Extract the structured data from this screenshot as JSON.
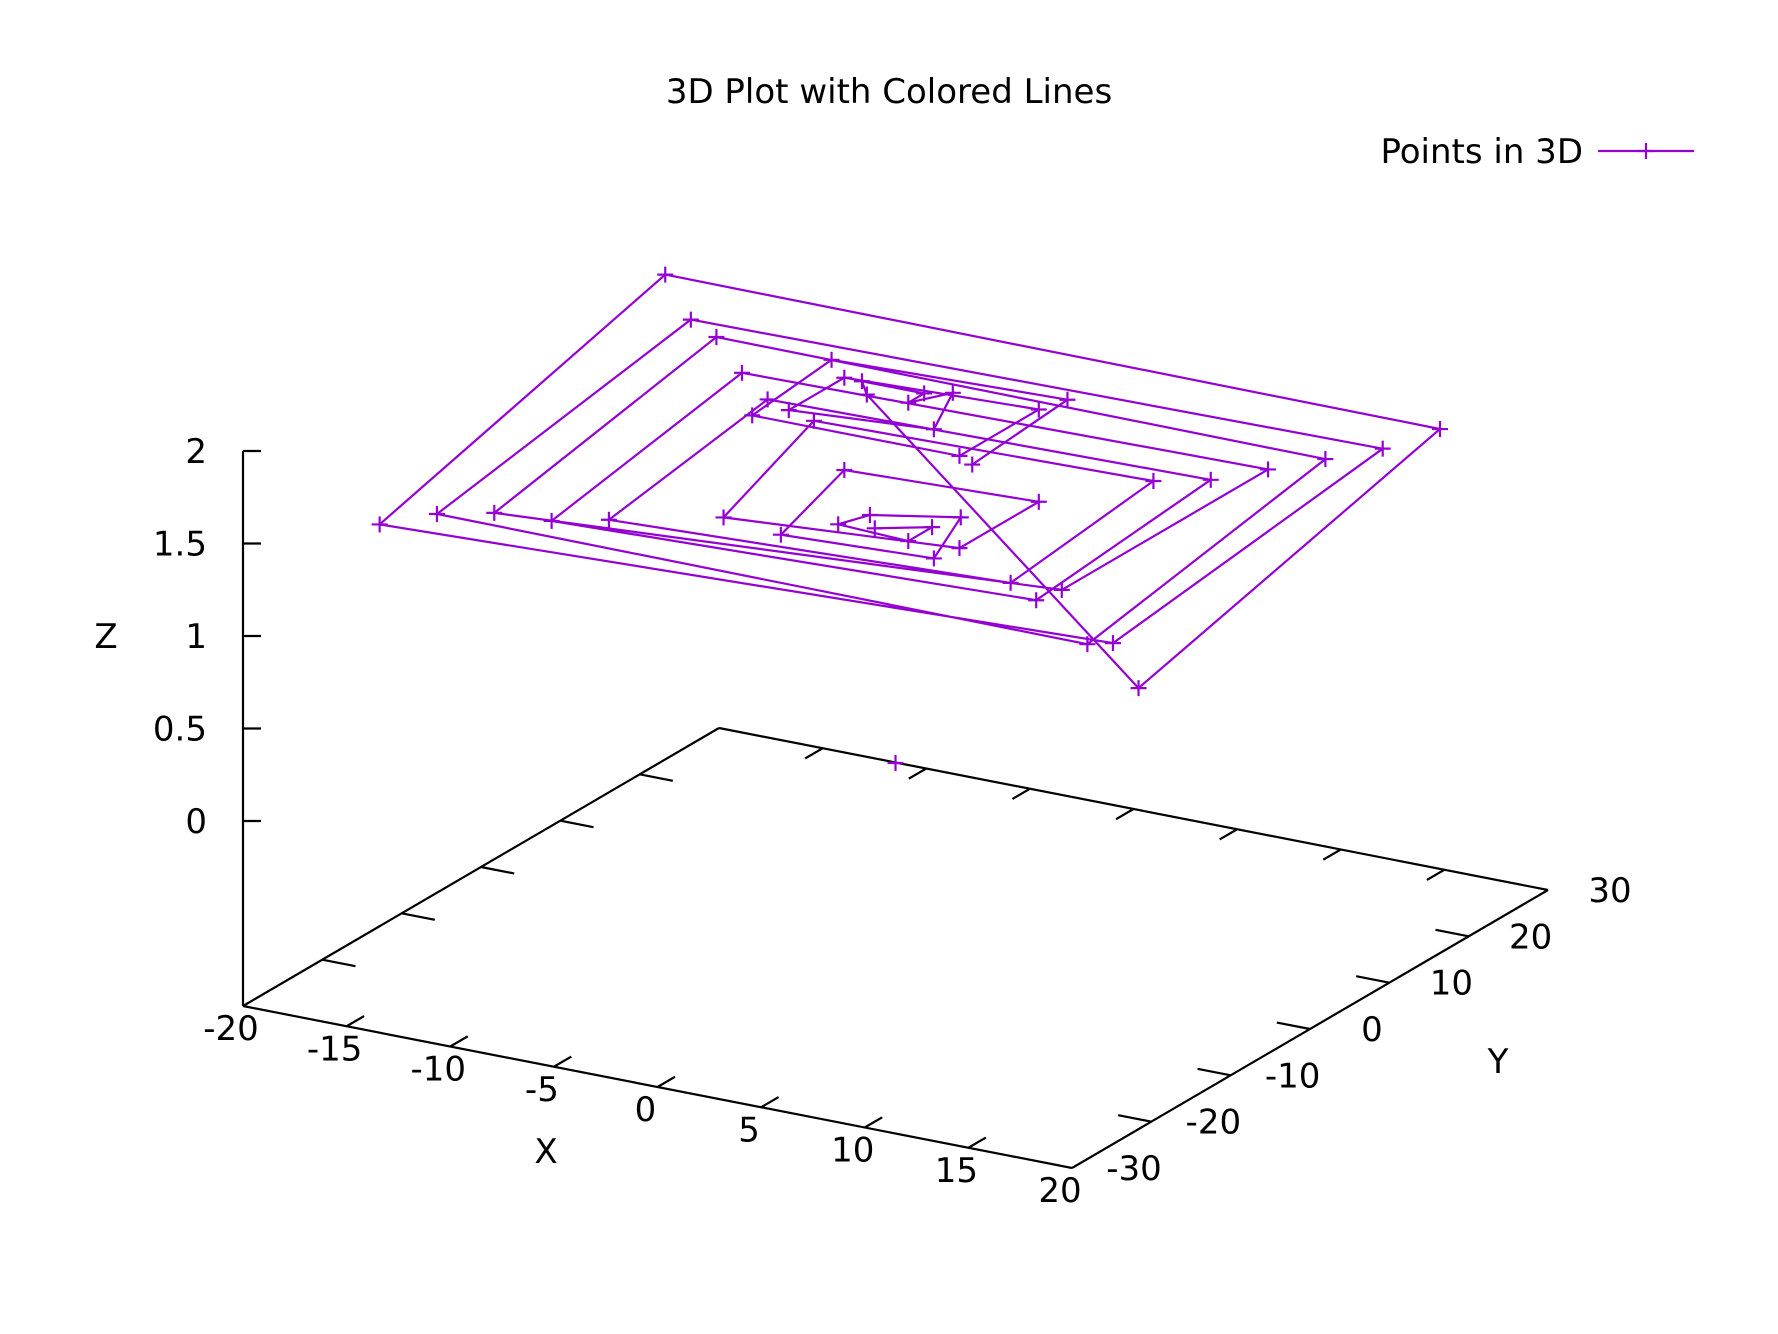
{
  "chart_data": {
    "type": "line3d",
    "title": "3D Plot with Colored Lines",
    "xlabel": "X",
    "ylabel": "Y",
    "zlabel": "Z",
    "xlim": [
      -20,
      20
    ],
    "ylim": [
      -30,
      30
    ],
    "zlim": [
      0,
      2
    ],
    "xticks": [
      "-20",
      "-15",
      "-10",
      "-5",
      "0",
      "5",
      "10",
      "15",
      "20"
    ],
    "yticks": [
      "-30",
      "-20",
      "-10",
      "0",
      "10",
      "20",
      "30"
    ],
    "zticks": [
      "0",
      "0.5",
      "1",
      "1.5",
      "2"
    ],
    "legend": {
      "position": "top-right"
    },
    "series": [
      {
        "name": "Points in 3D",
        "color": "#9400d3",
        "points": [
          [
            0,
            0,
            0
          ],
          [
            -1,
            0,
            1.25
          ],
          [
            1,
            2,
            1.25
          ],
          [
            1,
            -1,
            1.25
          ],
          [
            -2,
            -2,
            1.3
          ],
          [
            -2,
            2,
            1.25
          ],
          [
            2,
            3,
            1.3
          ],
          [
            3,
            -3,
            1.25
          ],
          [
            -4,
            -4,
            1.25
          ],
          [
            -4,
            4,
            1.4
          ],
          [
            5,
            5,
            1.4
          ],
          [
            5,
            -5,
            1.4
          ],
          [
            -6,
            -6,
            1.35
          ],
          [
            -7,
            8,
            1.5
          ],
          [
            9,
            9,
            1.5
          ],
          [
            9,
            -9,
            1.4
          ],
          [
            -10,
            -10,
            1.35
          ],
          [
            -10,
            10,
            1.5
          ],
          [
            11,
            11,
            1.5
          ],
          [
            11,
            -11,
            1.4
          ],
          [
            -12,
            -12,
            1.35
          ],
          [
            -12,
            12,
            1.55
          ],
          [
            13,
            13,
            1.55
          ],
          [
            13,
            -13,
            1.55
          ],
          [
            -14,
            -14,
            1.4
          ],
          [
            -14,
            14,
            1.65
          ],
          [
            15,
            15,
            1.6
          ],
          [
            15,
            -15,
            1.35
          ],
          [
            -16,
            -16,
            1.4
          ],
          [
            -16,
            16,
            1.65
          ],
          [
            17,
            17,
            1.65
          ],
          [
            17,
            -17,
            1.45
          ],
          [
            -18,
            -18,
            1.35
          ],
          [
            -18,
            18,
            1.8
          ],
          [
            19,
            19,
            1.75
          ],
          [
            19,
            -19,
            1.3
          ],
          [
            -1,
            -1,
            2.0
          ],
          [
            -2,
            1,
            2.0
          ],
          [
            1,
            1,
            2.0
          ],
          [
            1,
            -1,
            2.0
          ],
          [
            2,
            2,
            2.0
          ],
          [
            3,
            -3,
            1.95
          ],
          [
            -4,
            -3,
            1.9
          ],
          [
            -4,
            4,
            1.9
          ],
          [
            5,
            5,
            1.9
          ],
          [
            5,
            -5,
            1.9
          ],
          [
            -5,
            -5,
            1.9
          ],
          [
            -5,
            5,
            1.95
          ],
          [
            6,
            6,
            1.95
          ],
          [
            6,
            -6,
            1.9
          ]
        ]
      }
    ]
  }
}
